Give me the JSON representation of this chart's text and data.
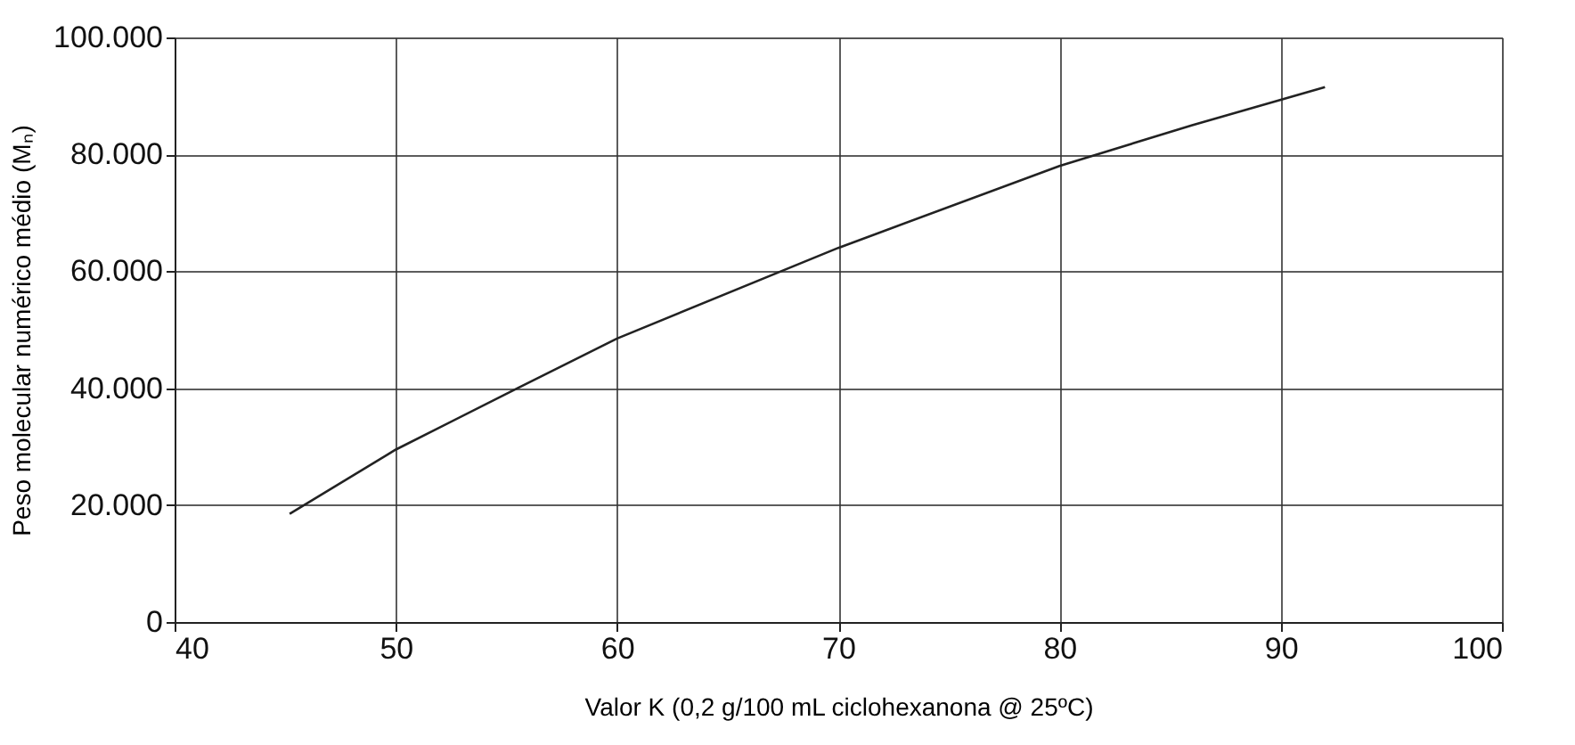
{
  "chart_data": {
    "type": "line",
    "xlabel": "Valor K (0,2 g/100 mL ciclohexanona @ 25ºC)",
    "ylabel": "Peso molecular numérico médio (Mₙ)",
    "x": [
      45.2,
      50,
      55.5,
      60,
      70,
      80,
      86,
      92
    ],
    "series": [
      {
        "color": "#222222",
        "values": [
          18500,
          29500,
          40000,
          48500,
          64000,
          78000,
          85000,
          91500
        ]
      }
    ],
    "xlim": [
      40,
      100
    ],
    "xticks": [
      40,
      50,
      60,
      70,
      80,
      90,
      100
    ],
    "ylim": [
      0,
      100000
    ],
    "yticks": [
      0,
      {
        "value": 20000,
        "label": "20.000"
      },
      {
        "value": 40000,
        "label": "40.000"
      },
      {
        "value": 60000,
        "label": "60.000"
      },
      {
        "value": 80000,
        "label": "80.000"
      },
      {
        "value": 100000,
        "label": "100.000"
      }
    ],
    "grid": true,
    "marker": "none",
    "line_style": "solid"
  }
}
